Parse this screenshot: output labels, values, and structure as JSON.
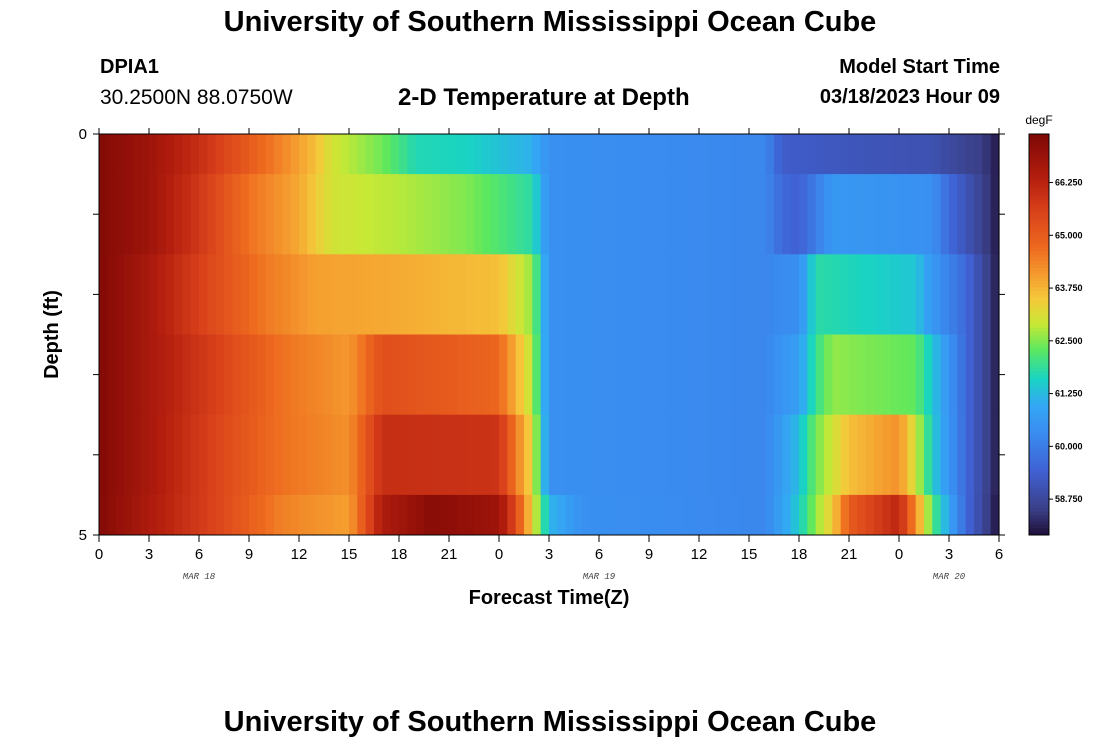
{
  "header": {
    "main_title": "University of Southern Mississippi Ocean Cube",
    "station_id": "DPIA1",
    "coordinates": "30.2500N  88.0750W",
    "plot_title": "2-D Temperature at Depth",
    "model_start_label": "Model Start Time",
    "model_start_value": "03/18/2023 Hour 09"
  },
  "footer": {
    "repeated_title": "University of Southern Mississippi Ocean Cube"
  },
  "chart_data": {
    "type": "heatmap",
    "title": "2-D Temperature at Depth",
    "xlabel": "Forecast Time(Z)",
    "ylabel": "Depth (ft)",
    "x_tick_labels": [
      "0",
      "3",
      "6",
      "9",
      "12",
      "15",
      "18",
      "21",
      "0",
      "3",
      "6",
      "9",
      "12",
      "15",
      "18",
      "21",
      "0",
      "3",
      "6"
    ],
    "x_date_labels": [
      {
        "label": "MAR 18",
        "hour_index": 6
      },
      {
        "label": "MAR 19",
        "hour_index": 30
      },
      {
        "label": "MAR 20",
        "hour_index": 51
      }
    ],
    "x_range_hours": [
      0,
      54
    ],
    "y_tick_labels": [
      "0",
      "5"
    ],
    "ylim": [
      0,
      5
    ],
    "colorbar": {
      "unit": "degF",
      "range": [
        57.9,
        67.4
      ],
      "tick_values": [
        58.75,
        60.0,
        61.25,
        62.5,
        63.75,
        65.0,
        66.25
      ],
      "tick_labels": [
        "58.750",
        "60.000",
        "61.250",
        "62.500",
        "63.750",
        "65.000",
        "66.250"
      ],
      "stops": [
        {
          "v": 57.9,
          "color": "#1f0f3a"
        },
        {
          "v": 58.5,
          "color": "#3a3f86"
        },
        {
          "v": 59.4,
          "color": "#4060d2"
        },
        {
          "v": 60.3,
          "color": "#3a8cf0"
        },
        {
          "v": 61.0,
          "color": "#33a8f4"
        },
        {
          "v": 61.6,
          "color": "#19d4c2"
        },
        {
          "v": 62.3,
          "color": "#5ee85e"
        },
        {
          "v": 62.9,
          "color": "#c8e835"
        },
        {
          "v": 63.5,
          "color": "#f5c83a"
        },
        {
          "v": 64.0,
          "color": "#f5a030"
        },
        {
          "v": 64.7,
          "color": "#ee6a1f"
        },
        {
          "v": 65.6,
          "color": "#d8401a"
        },
        {
          "v": 66.4,
          "color": "#b21d0e"
        },
        {
          "v": 67.4,
          "color": "#7e0805"
        }
      ]
    },
    "depth_rows": [
      {
        "row": 0,
        "keyframes": [
          [
            0,
            67.3
          ],
          [
            3,
            66.8
          ],
          [
            6,
            66.0
          ],
          [
            9,
            65.0
          ],
          [
            12,
            64.0
          ],
          [
            13,
            63.6
          ],
          [
            14,
            63.0
          ],
          [
            17,
            62.4
          ],
          [
            19,
            61.7
          ],
          [
            22,
            61.6
          ],
          [
            26,
            61.1
          ],
          [
            27,
            60.4
          ],
          [
            40,
            60.2
          ],
          [
            41,
            59.3
          ],
          [
            46,
            59.1
          ],
          [
            50,
            59.0
          ],
          [
            51,
            58.8
          ],
          [
            53,
            58.5
          ],
          [
            54,
            58.0
          ]
        ]
      },
      {
        "row": 1,
        "keyframes": [
          [
            0,
            67.3
          ],
          [
            3,
            66.8
          ],
          [
            6,
            65.8
          ],
          [
            9,
            64.6
          ],
          [
            12,
            63.9
          ],
          [
            14,
            63.0
          ],
          [
            18,
            62.8
          ],
          [
            22,
            62.5
          ],
          [
            26,
            61.8
          ],
          [
            27,
            60.4
          ],
          [
            40,
            60.2
          ],
          [
            41,
            59.6
          ],
          [
            42,
            59.4
          ],
          [
            44,
            60.6
          ],
          [
            50,
            60.4
          ],
          [
            51,
            59.6
          ],
          [
            53,
            58.6
          ],
          [
            54,
            58.0
          ]
        ]
      },
      {
        "row": 2,
        "keyframes": [
          [
            0,
            67.3
          ],
          [
            3,
            66.6
          ],
          [
            6,
            65.6
          ],
          [
            10,
            64.5
          ],
          [
            13,
            64.0
          ],
          [
            17,
            63.9
          ],
          [
            24,
            63.6
          ],
          [
            26,
            62.6
          ],
          [
            27,
            60.4
          ],
          [
            40,
            60.2
          ],
          [
            42,
            60.4
          ],
          [
            43,
            61.8
          ],
          [
            49,
            61.4
          ],
          [
            50,
            60.6
          ],
          [
            52,
            59.6
          ],
          [
            54,
            58.0
          ]
        ]
      },
      {
        "row": 3,
        "keyframes": [
          [
            0,
            67.3
          ],
          [
            3,
            66.6
          ],
          [
            7,
            65.6
          ],
          [
            11,
            64.6
          ],
          [
            15,
            64.1
          ],
          [
            17,
            65.3
          ],
          [
            24,
            64.8
          ],
          [
            25,
            63.8
          ],
          [
            26,
            62.8
          ],
          [
            27,
            60.4
          ],
          [
            40,
            60.2
          ],
          [
            42,
            60.8
          ],
          [
            43,
            61.9
          ],
          [
            44,
            62.6
          ],
          [
            49,
            62.3
          ],
          [
            50,
            61.4
          ],
          [
            52,
            59.6
          ],
          [
            54,
            58.0
          ]
        ]
      },
      {
        "row": 4,
        "keyframes": [
          [
            0,
            67.3
          ],
          [
            3,
            66.6
          ],
          [
            7,
            65.5
          ],
          [
            11,
            64.6
          ],
          [
            15,
            64.2
          ],
          [
            17,
            66.0
          ],
          [
            24,
            65.9
          ],
          [
            25,
            64.5
          ],
          [
            26,
            63.2
          ],
          [
            27,
            60.4
          ],
          [
            40,
            60.2
          ],
          [
            42,
            61.3
          ],
          [
            43,
            62.4
          ],
          [
            45,
            63.6
          ],
          [
            48,
            64.2
          ],
          [
            49,
            63.0
          ],
          [
            50,
            61.5
          ],
          [
            52,
            59.6
          ],
          [
            54,
            58.0
          ]
        ]
      },
      {
        "row": 5,
        "keyframes": [
          [
            0,
            67.3
          ],
          [
            3,
            66.5
          ],
          [
            7,
            65.5
          ],
          [
            11,
            64.4
          ],
          [
            15,
            64.0
          ],
          [
            17,
            66.5
          ],
          [
            20,
            67.2
          ],
          [
            24,
            66.8
          ],
          [
            25,
            65.4
          ],
          [
            26,
            63.3
          ],
          [
            27,
            61.2
          ],
          [
            29,
            60.4
          ],
          [
            40,
            60.2
          ],
          [
            42,
            61.5
          ],
          [
            43,
            62.6
          ],
          [
            44,
            63.4
          ],
          [
            45,
            65.0
          ],
          [
            48,
            66.2
          ],
          [
            49,
            64.2
          ],
          [
            50,
            62.2
          ],
          [
            52,
            59.6
          ],
          [
            54,
            57.9
          ]
        ]
      }
    ]
  }
}
